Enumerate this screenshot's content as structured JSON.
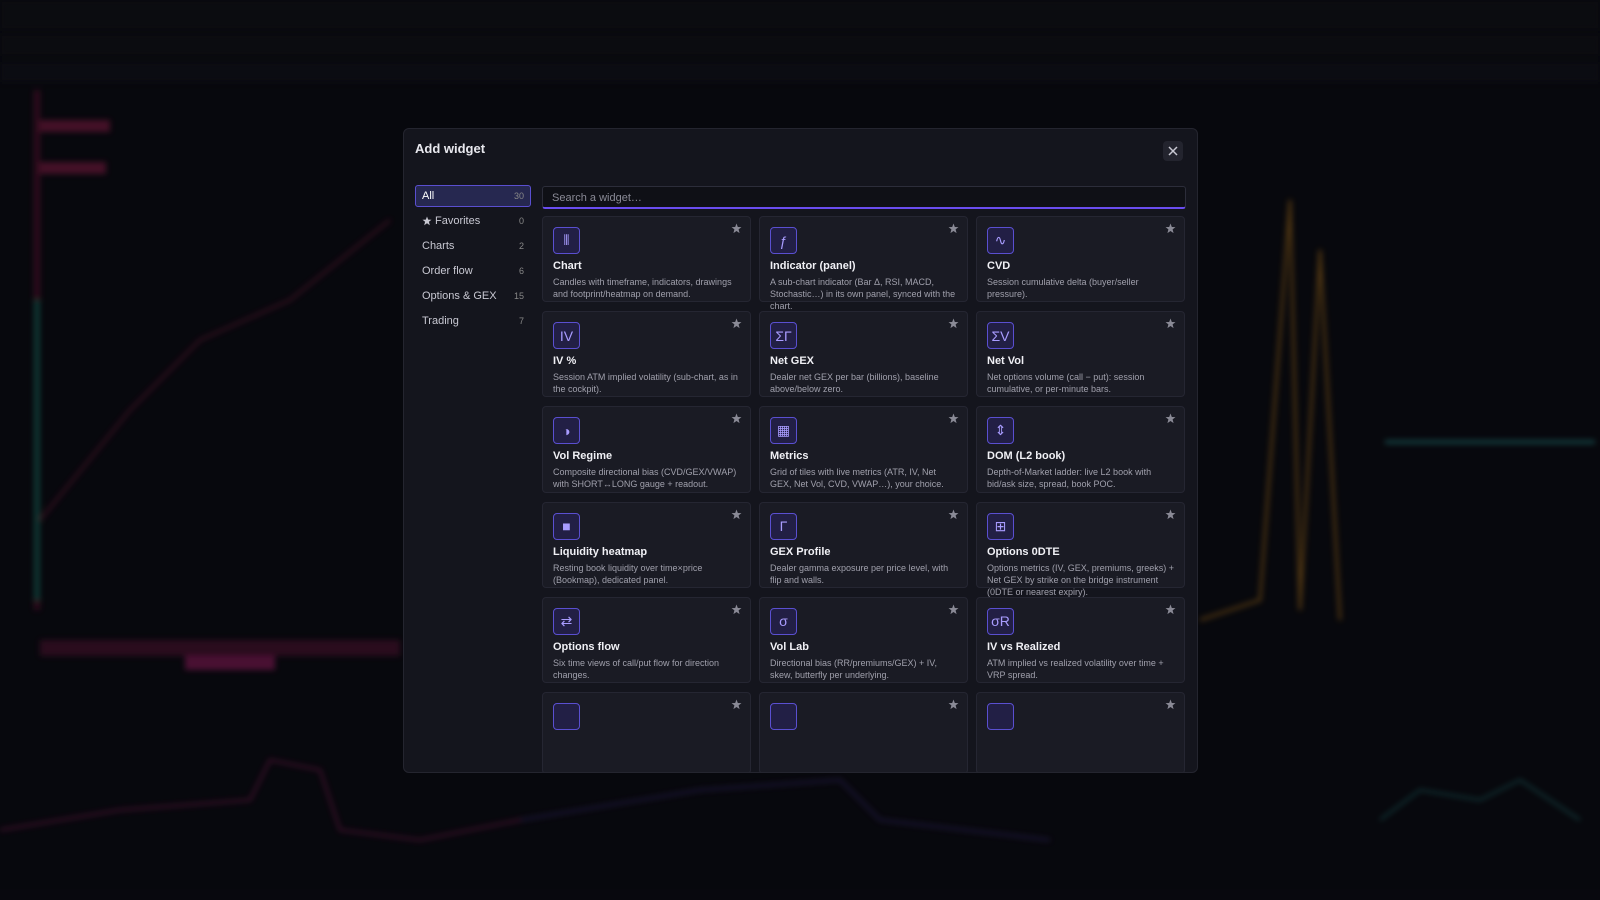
{
  "modal": {
    "title": "Add widget",
    "search_placeholder": "Search a widget…",
    "categories": [
      {
        "label": "All",
        "count": 30
      },
      {
        "label": "Favorites",
        "count": 0
      },
      {
        "label": "Charts",
        "count": 2
      },
      {
        "label": "Order flow",
        "count": 6
      },
      {
        "label": "Options & GEX",
        "count": 15
      },
      {
        "label": "Trading",
        "count": 7
      }
    ],
    "widgets": [
      {
        "icon": "⦀",
        "title": "Chart",
        "description": "Candles with timeframe, indicators, drawings and footprint/heatmap on demand."
      },
      {
        "icon": "ƒ",
        "title": "Indicator (panel)",
        "description": "A sub-chart indicator (Bar Δ, RSI, MACD, Stochastic…) in its own panel, synced with the chart."
      },
      {
        "icon": "∿",
        "title": "CVD",
        "description": "Session cumulative delta (buyer/seller pressure)."
      },
      {
        "icon": "IV",
        "title": "IV %",
        "description": "Session ATM implied volatility (sub-chart, as in the cockpit)."
      },
      {
        "icon": "ΣΓ",
        "title": "Net GEX",
        "description": "Dealer net GEX per bar (billions), baseline above/below zero."
      },
      {
        "icon": "ΣV",
        "title": "Net Vol",
        "description": "Net options volume (call − put): session cumulative, or per-minute bars."
      },
      {
        "icon": "◑",
        "title": "Vol Regime",
        "description": "Composite directional bias (CVD/GEX/VWAP) with SHORT↔LONG gauge + readout."
      },
      {
        "icon": "▦",
        "title": "Metrics",
        "description": "Grid of tiles with live metrics (ATR, IV, Net GEX, Net Vol, CVD, VWAP…), your choice."
      },
      {
        "icon": "⇕",
        "title": "DOM (L2 book)",
        "description": "Depth-of-Market ladder: live L2 book with bid/ask size, spread, book POC."
      },
      {
        "icon": "■",
        "title": "Liquidity heatmap",
        "description": "Resting book liquidity over time×price (Bookmap), dedicated panel."
      },
      {
        "icon": "Γ",
        "title": "GEX Profile",
        "description": "Dealer gamma exposure per price level, with flip and walls."
      },
      {
        "icon": "⊞",
        "title": "Options 0DTE",
        "description": "Options metrics (IV, GEX, premiums, greeks) + Net GEX by strike on the bridge instrument (0DTE or nearest expiry)."
      },
      {
        "icon": "⇄",
        "title": "Options flow",
        "description": "Six time views of call/put flow for direction changes."
      },
      {
        "icon": "σ",
        "title": "Vol Lab",
        "description": "Directional bias (RR/premiums/GEX) + IV, skew, butterfly per underlying."
      },
      {
        "icon": "σR",
        "title": "IV vs Realized",
        "description": "ATM implied vs realized volatility over time + VRP spread."
      }
    ]
  }
}
